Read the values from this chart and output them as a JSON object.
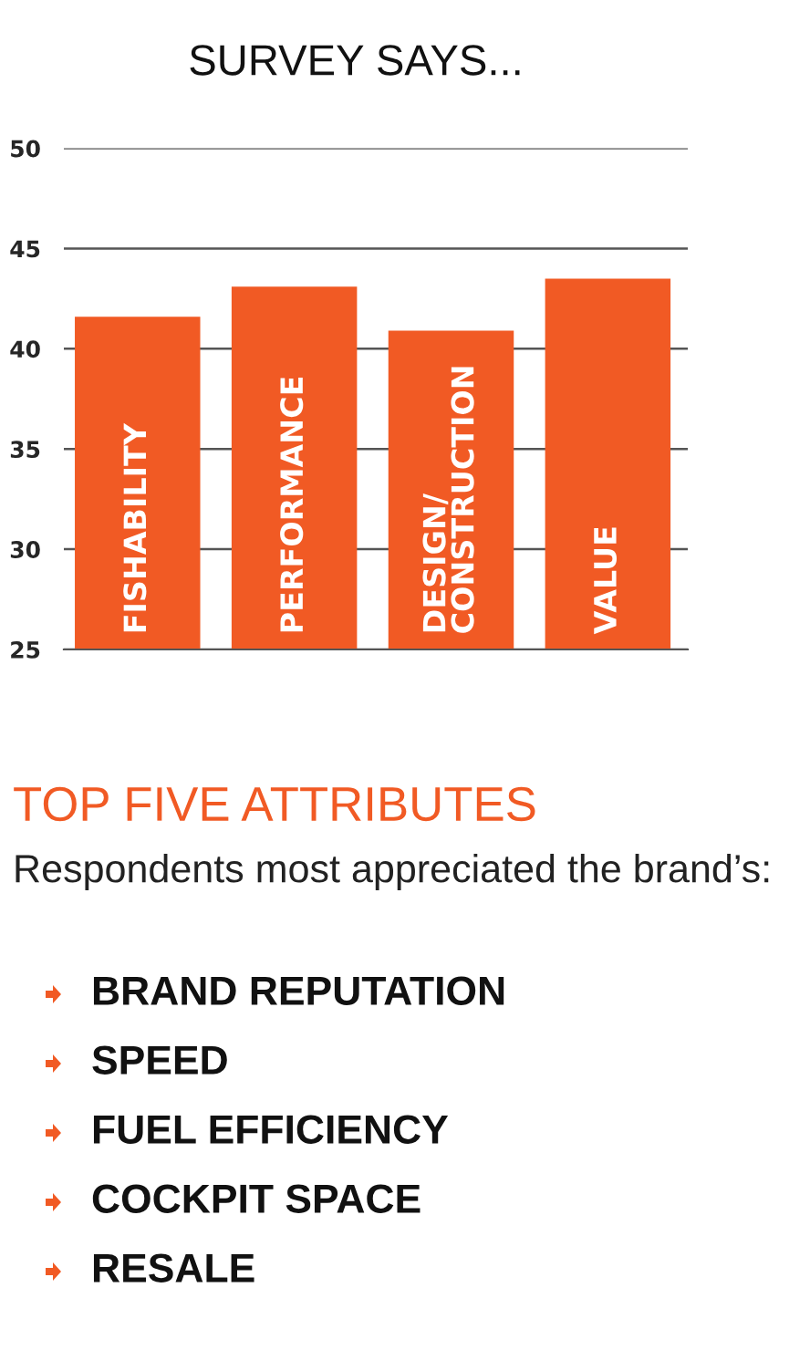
{
  "chart_data": {
    "type": "bar",
    "title": "SURVEY SAYS...",
    "categories": [
      "FISHABILITY",
      "PERFORMANCE",
      "DESIGN/\nCONSTRUCTION",
      "VALUE"
    ],
    "values": [
      41.6,
      43.1,
      40.9,
      43.5
    ],
    "color": "#f15a24",
    "ylim": [
      25,
      50
    ],
    "yticks": [
      25,
      30,
      35,
      40,
      45,
      50
    ],
    "grid": "y",
    "annotations": [
      "TOP FIVE ATTRIBUTES",
      "Respondents most appreciated the brand’s:",
      "BRAND REPUTATION",
      "SPEED",
      "FUEL EFFICIENCY",
      "COCKPIT SPACE",
      "RESALE"
    ]
  }
}
